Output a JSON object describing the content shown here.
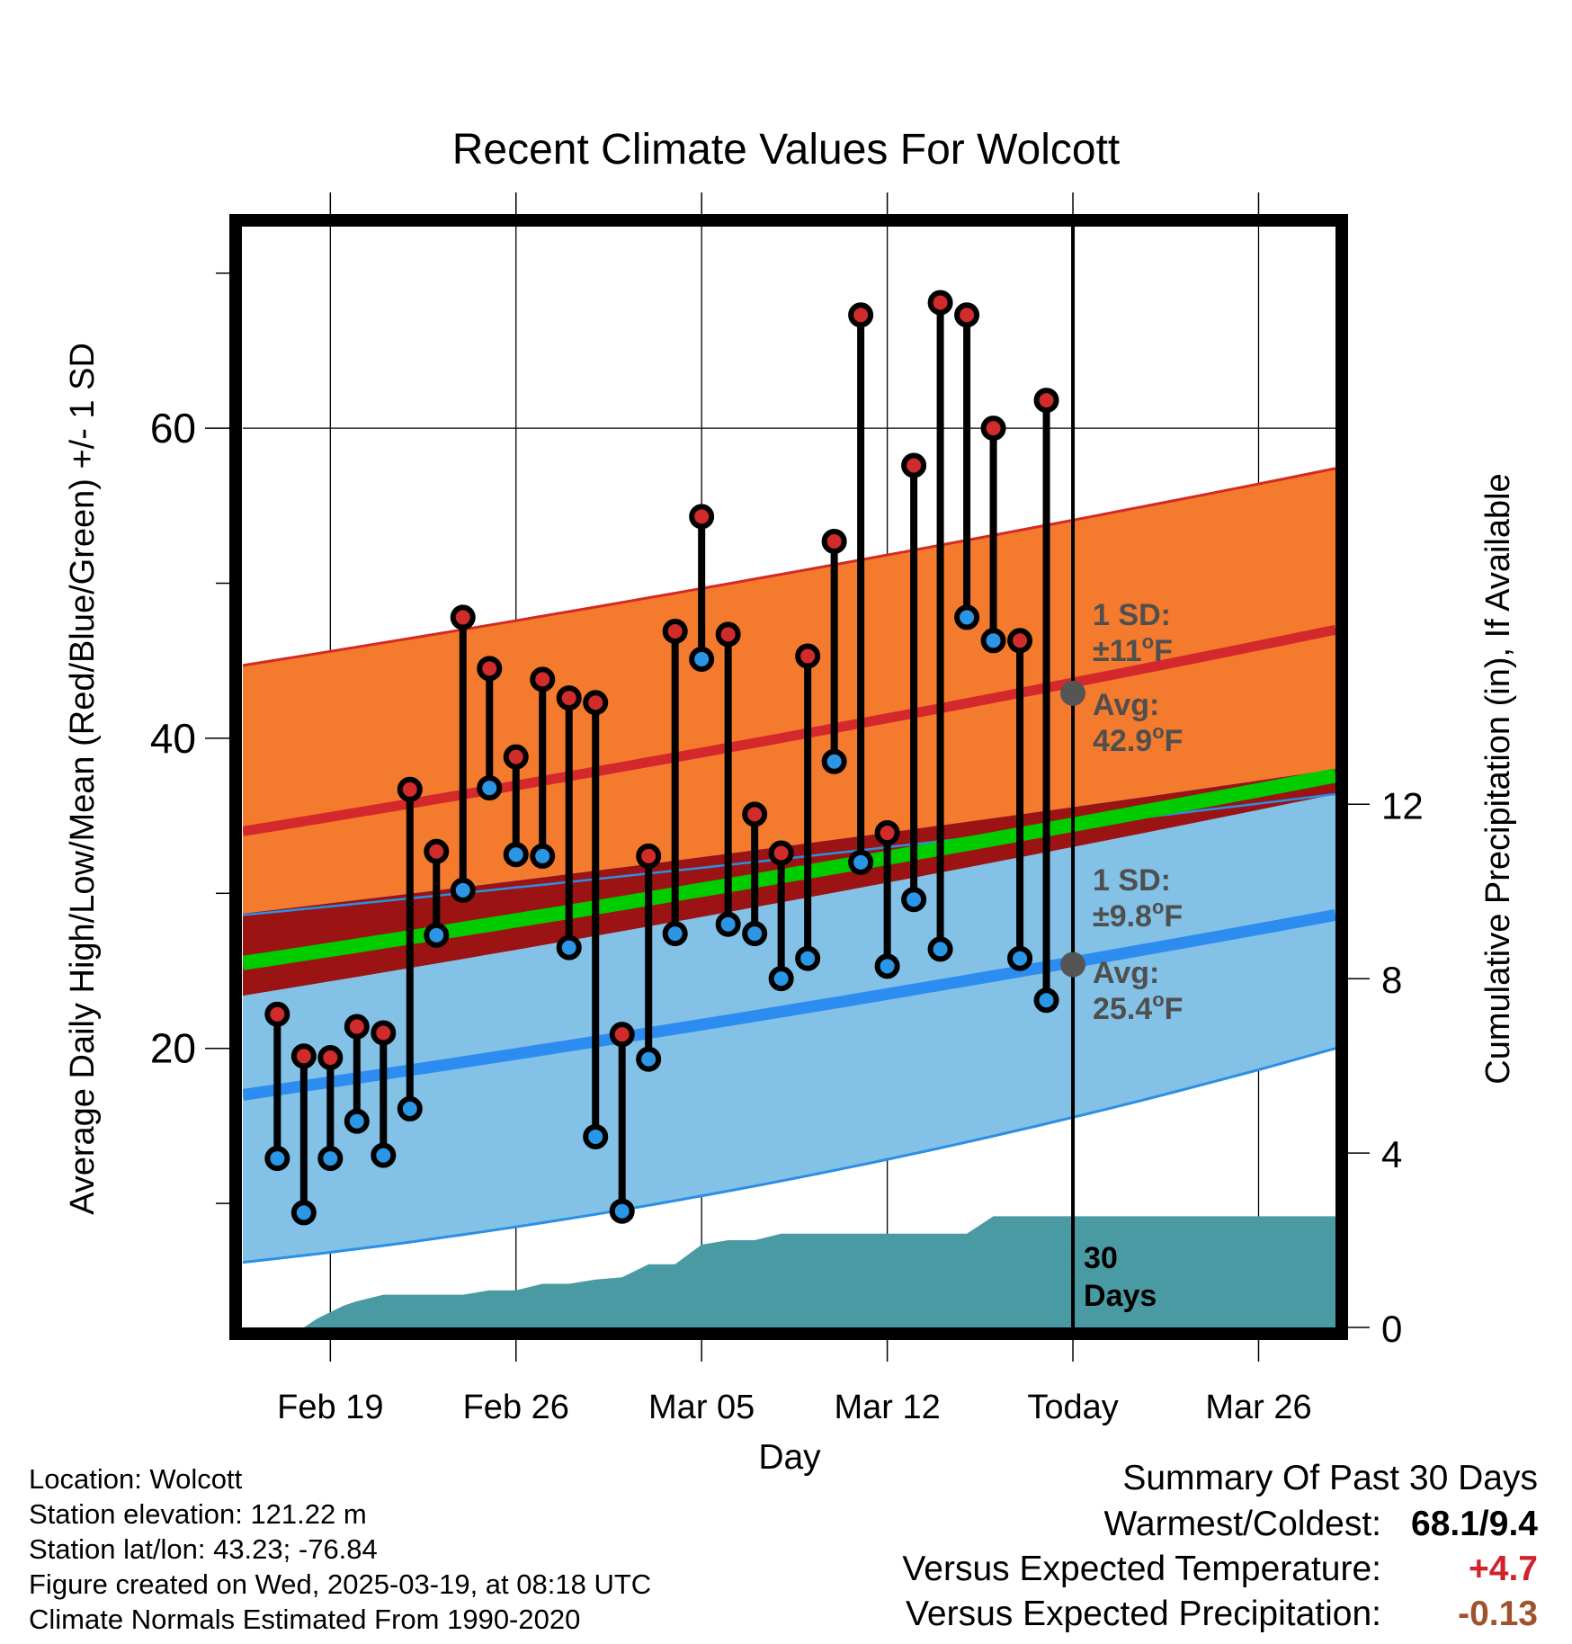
{
  "chart_data": {
    "type": "line",
    "title": "Recent Climate Values For Wolcott",
    "xlabel": "Day",
    "ylabel": "Average Daily High/Low/Mean (Red/Blue/Green) +/- 1 SD",
    "y2label": "Cumulative Precipitation (in), If Available",
    "x_tick_labels": [
      "Feb 19",
      "Feb 26",
      "Mar 05",
      "Mar 12",
      "Today",
      "Mar 26"
    ],
    "x_tick_days": [
      0,
      7,
      14,
      21,
      28,
      35
    ],
    "xlim": [
      -3.3,
      37.9
    ],
    "ylim": [
      2,
      73
    ],
    "y_ticks": [
      20,
      40,
      60
    ],
    "y_minor_ticks": [
      10,
      30,
      50,
      70
    ],
    "y2lim": [
      0,
      25.25
    ],
    "y2_ticks": [
      0,
      4,
      8,
      12
    ],
    "grid": true,
    "normals": {
      "high_mean": {
        "start": 34.0,
        "end": 47.0
      },
      "high_upper": {
        "start": 44.7,
        "end": 57.4
      },
      "high_lower": {
        "start": 28.7,
        "end": 38.0
      },
      "low_mean": {
        "start": 17.0,
        "end": 28.6
      },
      "low_upper": {
        "start": 28.6,
        "end": 36.4
      },
      "low_lower": {
        "start": 6.2,
        "end": 20.0
      },
      "mean_band": {
        "start": 25.5,
        "end": 37.6
      },
      "darkred_band": {
        "start_top": 28.7,
        "start_bottom": 23.4,
        "end_top": 38.0,
        "end_bottom": 36.4
      }
    },
    "daily": {
      "days": [
        -2,
        -1,
        0,
        1,
        2,
        3,
        4,
        5,
        6,
        7,
        8,
        9,
        10,
        11,
        12,
        13,
        14,
        15,
        16,
        17,
        18,
        19,
        20,
        21,
        22,
        23,
        24,
        25,
        26,
        27
      ],
      "high": [
        22.2,
        19.5,
        19.4,
        21.4,
        21.0,
        36.7,
        32.7,
        47.8,
        44.5,
        38.8,
        43.8,
        42.6,
        42.3,
        20.9,
        32.4,
        46.9,
        54.3,
        46.7,
        35.1,
        32.6,
        45.3,
        52.7,
        67.3,
        33.9,
        57.6,
        68.1,
        67.3,
        60.0,
        46.3,
        61.8
      ],
      "low": [
        12.9,
        9.4,
        12.9,
        15.3,
        13.1,
        16.1,
        27.3,
        30.2,
        36.8,
        32.5,
        32.4,
        26.5,
        14.3,
        9.5,
        19.3,
        27.4,
        45.1,
        28.0,
        27.4,
        24.5,
        25.8,
        38.5,
        32.0,
        25.3,
        29.6,
        26.4,
        47.8,
        46.3,
        25.8,
        23.1
      ]
    },
    "precip": {
      "days": [
        -1,
        -0.5,
        0,
        0.5,
        1,
        2,
        3,
        4,
        5,
        6,
        7,
        8,
        9,
        10,
        11,
        12,
        13,
        14,
        14.5,
        15,
        16,
        17,
        18,
        19,
        20,
        21,
        22,
        23,
        24,
        25,
        26,
        27,
        28,
        37.9
      ],
      "values": [
        0,
        0.2,
        0.35,
        0.5,
        0.6,
        0.75,
        0.75,
        0.75,
        0.75,
        0.85,
        0.85,
        1.0,
        1.0,
        1.1,
        1.15,
        1.45,
        1.45,
        1.9,
        1.95,
        2.0,
        2.0,
        2.15,
        2.15,
        2.15,
        2.15,
        2.15,
        2.15,
        2.15,
        2.15,
        2.55,
        2.55,
        2.55,
        2.55,
        2.55
      ]
    },
    "today_day": 28,
    "today_high_avg": 42.9,
    "today_low_avg": 25.4,
    "annotations": {
      "high_sd_title": "1 SD:",
      "high_sd_prefix": "±11",
      "low_sd_title": "1 SD:",
      "low_sd_prefix": "±9.8",
      "degree_mark": "o",
      "unit": "F",
      "avg_title": "Avg:",
      "high_avg_value": "42.9",
      "low_avg_value": "25.4",
      "days_line1": "30",
      "days_line2": "Days"
    },
    "colors": {
      "high_band": "#f47a2d",
      "high_edge": "#d42a23",
      "high_mean_line": "#d3282c",
      "darkred_band": "#9b1313",
      "mean_band": "#00cc00",
      "low_band": "#83c1e6",
      "low_edge": "#2b8fe3",
      "low_mean_line": "#2d8cf0",
      "high_dot": "#d12b2b",
      "low_dot": "#2b95e6",
      "precip_fill": "#4a9aa3",
      "annotation_text": "#4f4f4f",
      "today_marker": "#555555"
    }
  },
  "info": {
    "location": "Location: Wolcott",
    "elevation": "Station elevation: 121.22 m",
    "latlon": "Station lat/lon: 43.23; -76.84",
    "created": "Figure created on Wed, 2025-03-19, at 08:18 UTC",
    "normals": "Climate Normals Estimated From 1990-2020"
  },
  "summary": {
    "title": "Summary Of Past 30 Days",
    "warm_cold_label": "Warmest/Coldest:",
    "warm_cold_value": "68.1/9.4",
    "temp_label": "Versus Expected Temperature:",
    "temp_value": "+4.7",
    "precip_label": "Versus Expected Precipitation:",
    "precip_value": "-0.13"
  }
}
